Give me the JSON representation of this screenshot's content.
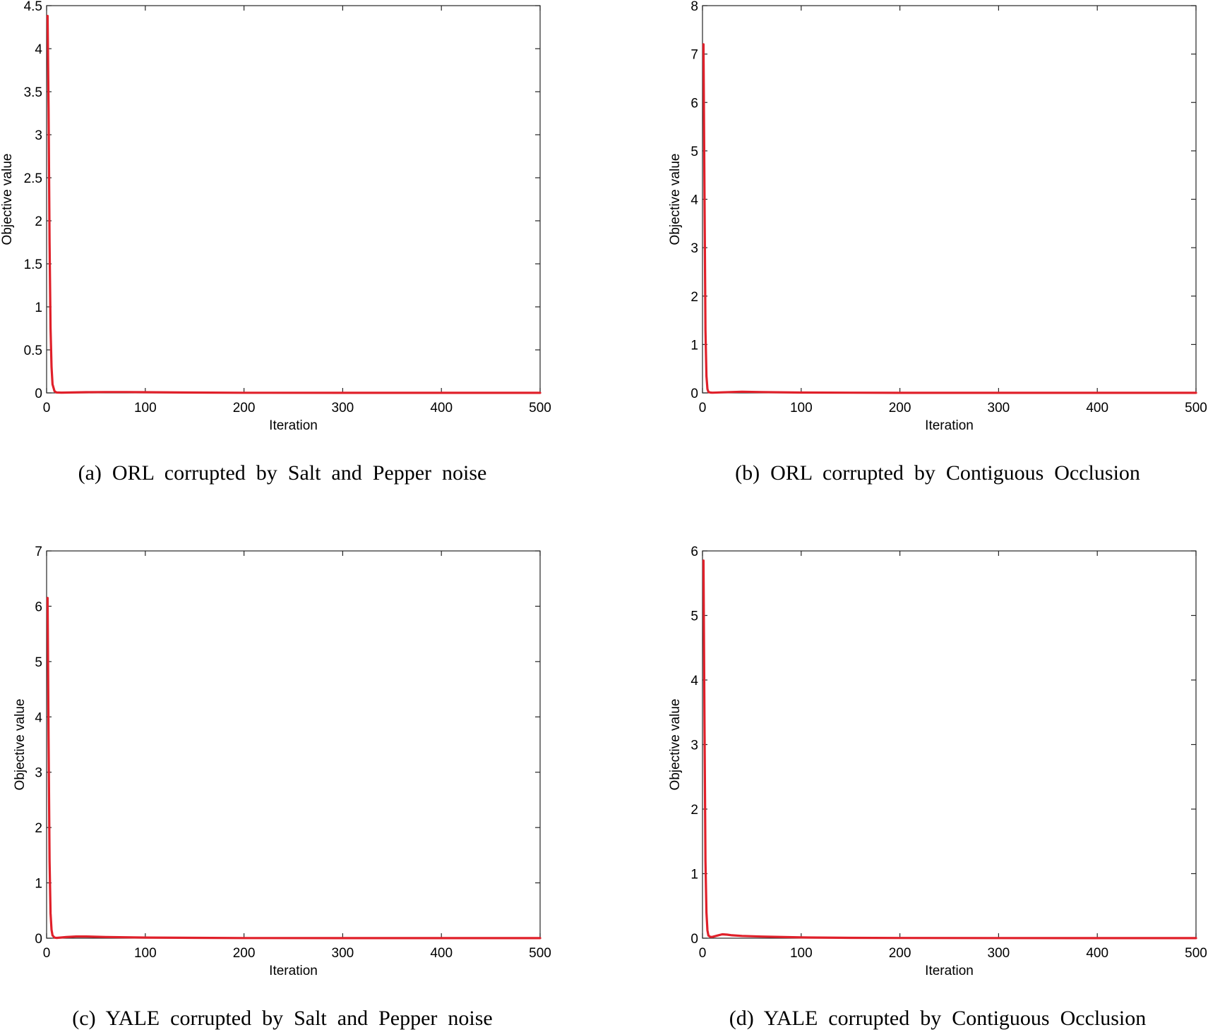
{
  "colors": {
    "line": "#e0202a",
    "axes": "#262626",
    "background": "#ffffff"
  },
  "chart_data": [
    {
      "type": "line",
      "caption": "(a)  ORL  corrupted  by  Salt  and  Pepper  noise",
      "xlabel": "Iteration",
      "ylabel": "Objective value",
      "xlim": [
        0,
        500
      ],
      "ylim": [
        0,
        4.5
      ],
      "xticks": [
        0,
        100,
        200,
        300,
        400,
        500
      ],
      "yticks": [
        0,
        0.5,
        1,
        1.5,
        2,
        2.5,
        3,
        3.5,
        4,
        4.5
      ],
      "ytick_labels": [
        "0",
        "0.5",
        "1",
        "1.5",
        "2",
        "2.5",
        "3",
        "3.5",
        "4",
        "4.5"
      ],
      "grid": false,
      "series": [
        {
          "x": [
            1,
            2,
            3,
            4,
            5,
            6,
            8,
            10,
            15,
            20,
            40,
            60,
            80,
            100,
            150,
            200,
            300,
            400,
            500
          ],
          "y": [
            4.38,
            3.3,
            1.75,
            0.75,
            0.3,
            0.1,
            0.02,
            0.005,
            0.003,
            0.004,
            0.008,
            0.01,
            0.01,
            0.008,
            0.004,
            0.002,
            0.001,
            0.001,
            0.001
          ]
        }
      ]
    },
    {
      "type": "line",
      "caption": "(b)  ORL  corrupted  by  Contiguous  Occlusion",
      "xlabel": "Iteration",
      "ylabel": "Objective value",
      "xlim": [
        0,
        500
      ],
      "ylim": [
        0,
        8
      ],
      "xticks": [
        0,
        100,
        200,
        300,
        400,
        500
      ],
      "yticks": [
        0,
        1,
        2,
        3,
        4,
        5,
        6,
        7,
        8
      ],
      "ytick_labels": [
        "0",
        "1",
        "2",
        "3",
        "4",
        "5",
        "6",
        "7",
        "8"
      ],
      "grid": false,
      "series": [
        {
          "x": [
            1,
            2,
            3,
            4,
            5,
            6,
            8,
            10,
            20,
            40,
            60,
            100,
            150,
            200,
            300,
            400,
            500
          ],
          "y": [
            7.2,
            4.2,
            1.3,
            0.35,
            0.08,
            0.02,
            0.008,
            0.005,
            0.012,
            0.025,
            0.018,
            0.008,
            0.004,
            0.002,
            0.001,
            0.001,
            0.001
          ]
        }
      ]
    },
    {
      "type": "line",
      "caption": "(c)  YALE  corrupted  by  Salt  and  Pepper  noise",
      "xlabel": "Iteration",
      "ylabel": "Objective value",
      "xlim": [
        0,
        500
      ],
      "ylim": [
        0,
        7
      ],
      "xticks": [
        0,
        100,
        200,
        300,
        400,
        500
      ],
      "yticks": [
        0,
        1,
        2,
        3,
        4,
        5,
        6,
        7
      ],
      "ytick_labels": [
        "0",
        "1",
        "2",
        "3",
        "4",
        "5",
        "6",
        "7"
      ],
      "grid": false,
      "series": [
        {
          "x": [
            1,
            2,
            3,
            4,
            5,
            6,
            8,
            10,
            20,
            30,
            40,
            60,
            100,
            150,
            200,
            300,
            400,
            500
          ],
          "y": [
            6.15,
            3.6,
            1.4,
            0.45,
            0.15,
            0.05,
            0.01,
            0.005,
            0.02,
            0.03,
            0.03,
            0.022,
            0.012,
            0.006,
            0.003,
            0.001,
            0.001,
            0.001
          ]
        }
      ]
    },
    {
      "type": "line",
      "caption": "(d)  YALE  corrupted  by  Contiguous  Occlusion",
      "xlabel": "Iteration",
      "ylabel": "Objective value",
      "xlim": [
        0,
        500
      ],
      "ylim": [
        0,
        6
      ],
      "xticks": [
        0,
        100,
        200,
        300,
        400,
        500
      ],
      "yticks": [
        0,
        1,
        2,
        3,
        4,
        5,
        6
      ],
      "ytick_labels": [
        "0",
        "1",
        "2",
        "3",
        "4",
        "5",
        "6"
      ],
      "grid": false,
      "series": [
        {
          "x": [
            1,
            2,
            3,
            4,
            5,
            6,
            8,
            10,
            15,
            20,
            25,
            30,
            40,
            60,
            100,
            150,
            200,
            300,
            400,
            500
          ],
          "y": [
            5.85,
            3.4,
            1.2,
            0.4,
            0.12,
            0.04,
            0.02,
            0.02,
            0.04,
            0.06,
            0.055,
            0.045,
            0.035,
            0.025,
            0.012,
            0.006,
            0.003,
            0.002,
            0.001,
            0.001
          ]
        }
      ]
    }
  ]
}
